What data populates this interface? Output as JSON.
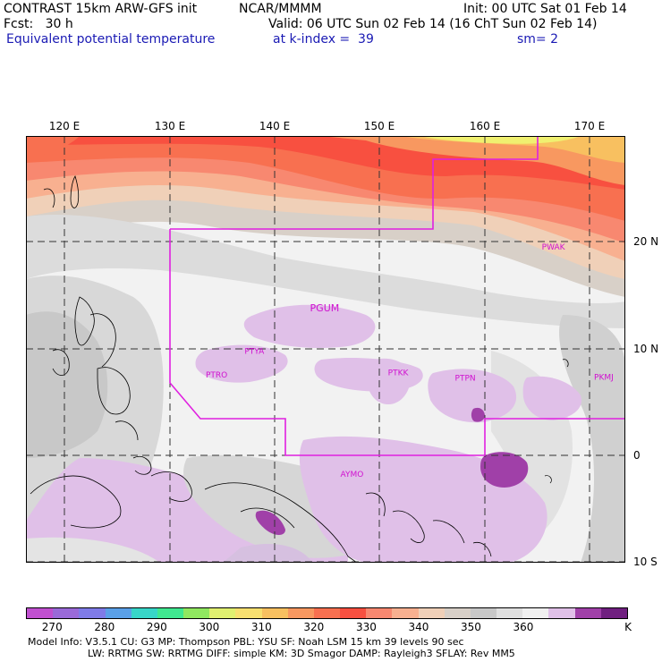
{
  "header": {
    "model": "CONTRAST 15km ARW-GFS init",
    "org": "NCAR/MMMM",
    "init": "Init: 00 UTC Sat 01 Feb 14",
    "fcst": "Fcst:   30 h",
    "valid": "Valid: 06 UTC Sun 02 Feb 14 (16 ChT Sun 02 Feb 14)",
    "field": "Equivalent potential temperature",
    "level": "at k-index =  39",
    "smooth": "sm= 2"
  },
  "map": {
    "lon_labels": [
      "120 E",
      "130 E",
      "140 E",
      "150 E",
      "160 E",
      "170 E"
    ],
    "lat_labels": [
      "20 N",
      "10 N",
      "0",
      "10 S"
    ],
    "stations": [
      {
        "id": "PGUM",
        "lon": 144.8,
        "lat": 13.5
      },
      {
        "id": "PTYA",
        "lon": 138.1,
        "lat": 9.5
      },
      {
        "id": "PTRO",
        "lon": 134.5,
        "lat": 7.3
      },
      {
        "id": "PTKK",
        "lon": 151.8,
        "lat": 7.5
      },
      {
        "id": "PTPN",
        "lon": 158.2,
        "lat": 7.0
      },
      {
        "id": "PKMJ",
        "lon": 171.4,
        "lat": 7.1
      },
      {
        "id": "PWAK",
        "lon": 166.6,
        "lat": 19.3
      },
      {
        "id": "AYMO",
        "lon": 147.4,
        "lat": -2.0
      }
    ],
    "line_color": "#e020e0"
  },
  "colorbar": {
    "ticks": [
      "270",
      "280",
      "290",
      "300",
      "310",
      "320",
      "330",
      "340",
      "350",
      "360",
      "K"
    ],
    "colors": [
      "#c050d0",
      "#9a6ad8",
      "#7f7be8",
      "#5aa0e8",
      "#38d6c8",
      "#40e890",
      "#90e860",
      "#e0f070",
      "#f8e070",
      "#f8c060",
      "#f89860",
      "#f87050",
      "#f85040",
      "#f88870",
      "#f8b090",
      "#f0d0b8",
      "#d8d0c8",
      "#c8c8c8",
      "#e0e0e0",
      "#f0f0f0",
      "#e0c0e8",
      "#a040a8",
      "#702080"
    ]
  },
  "footer": {
    "line1": "Model Info: V3.5.1    CU: G3       MP: Thompson     PBL: YSU       SF: Noah LSM     15 km    39 levels    90 sec",
    "line2": "LW: RRTMG    SW: RRTMG   DIFF: simple KM: 3D Smagor DAMP: Rayleigh3   SFLAY: Rev MM5"
  }
}
